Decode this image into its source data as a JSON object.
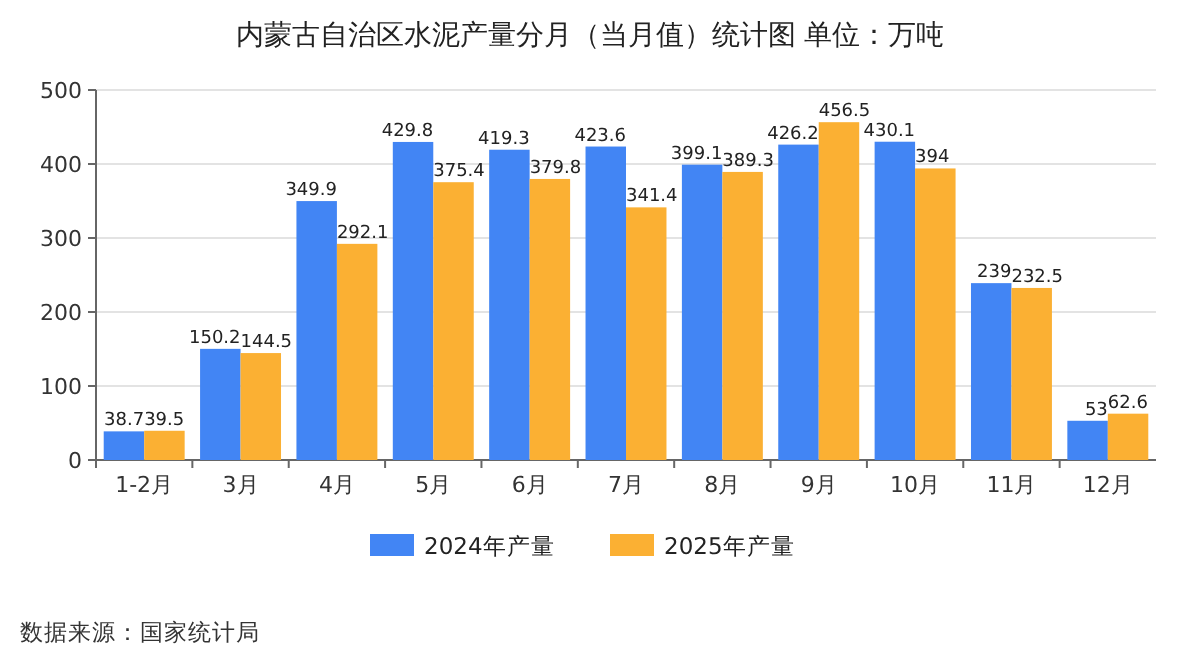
{
  "chart_data": {
    "type": "bar",
    "title": "内蒙古自治区水泥产量分月（当月值）统计图 单位：万吨",
    "categories": [
      "1-2月",
      "3月",
      "4月",
      "5月",
      "6月",
      "7月",
      "8月",
      "9月",
      "10月",
      "11月",
      "12月"
    ],
    "series": [
      {
        "name": "2024年产量",
        "color": "#4285f4",
        "values": [
          38.7,
          150.2,
          349.9,
          429.8,
          419.3,
          423.6,
          399.1,
          426.2,
          430.1,
          239,
          53
        ]
      },
      {
        "name": "2025年产量",
        "color": "#fbb033",
        "values": [
          39.5,
          144.5,
          292.1,
          375.4,
          379.8,
          341.4,
          389.3,
          456.5,
          394,
          232.5,
          62.6
        ]
      }
    ],
    "ylim": [
      0,
      500
    ],
    "yticks": [
      0,
      100,
      200,
      300,
      400,
      500
    ],
    "grid": "y",
    "legend": "bottom",
    "data_labels": true,
    "annotations": [
      "数据来源：国家统计局"
    ]
  }
}
